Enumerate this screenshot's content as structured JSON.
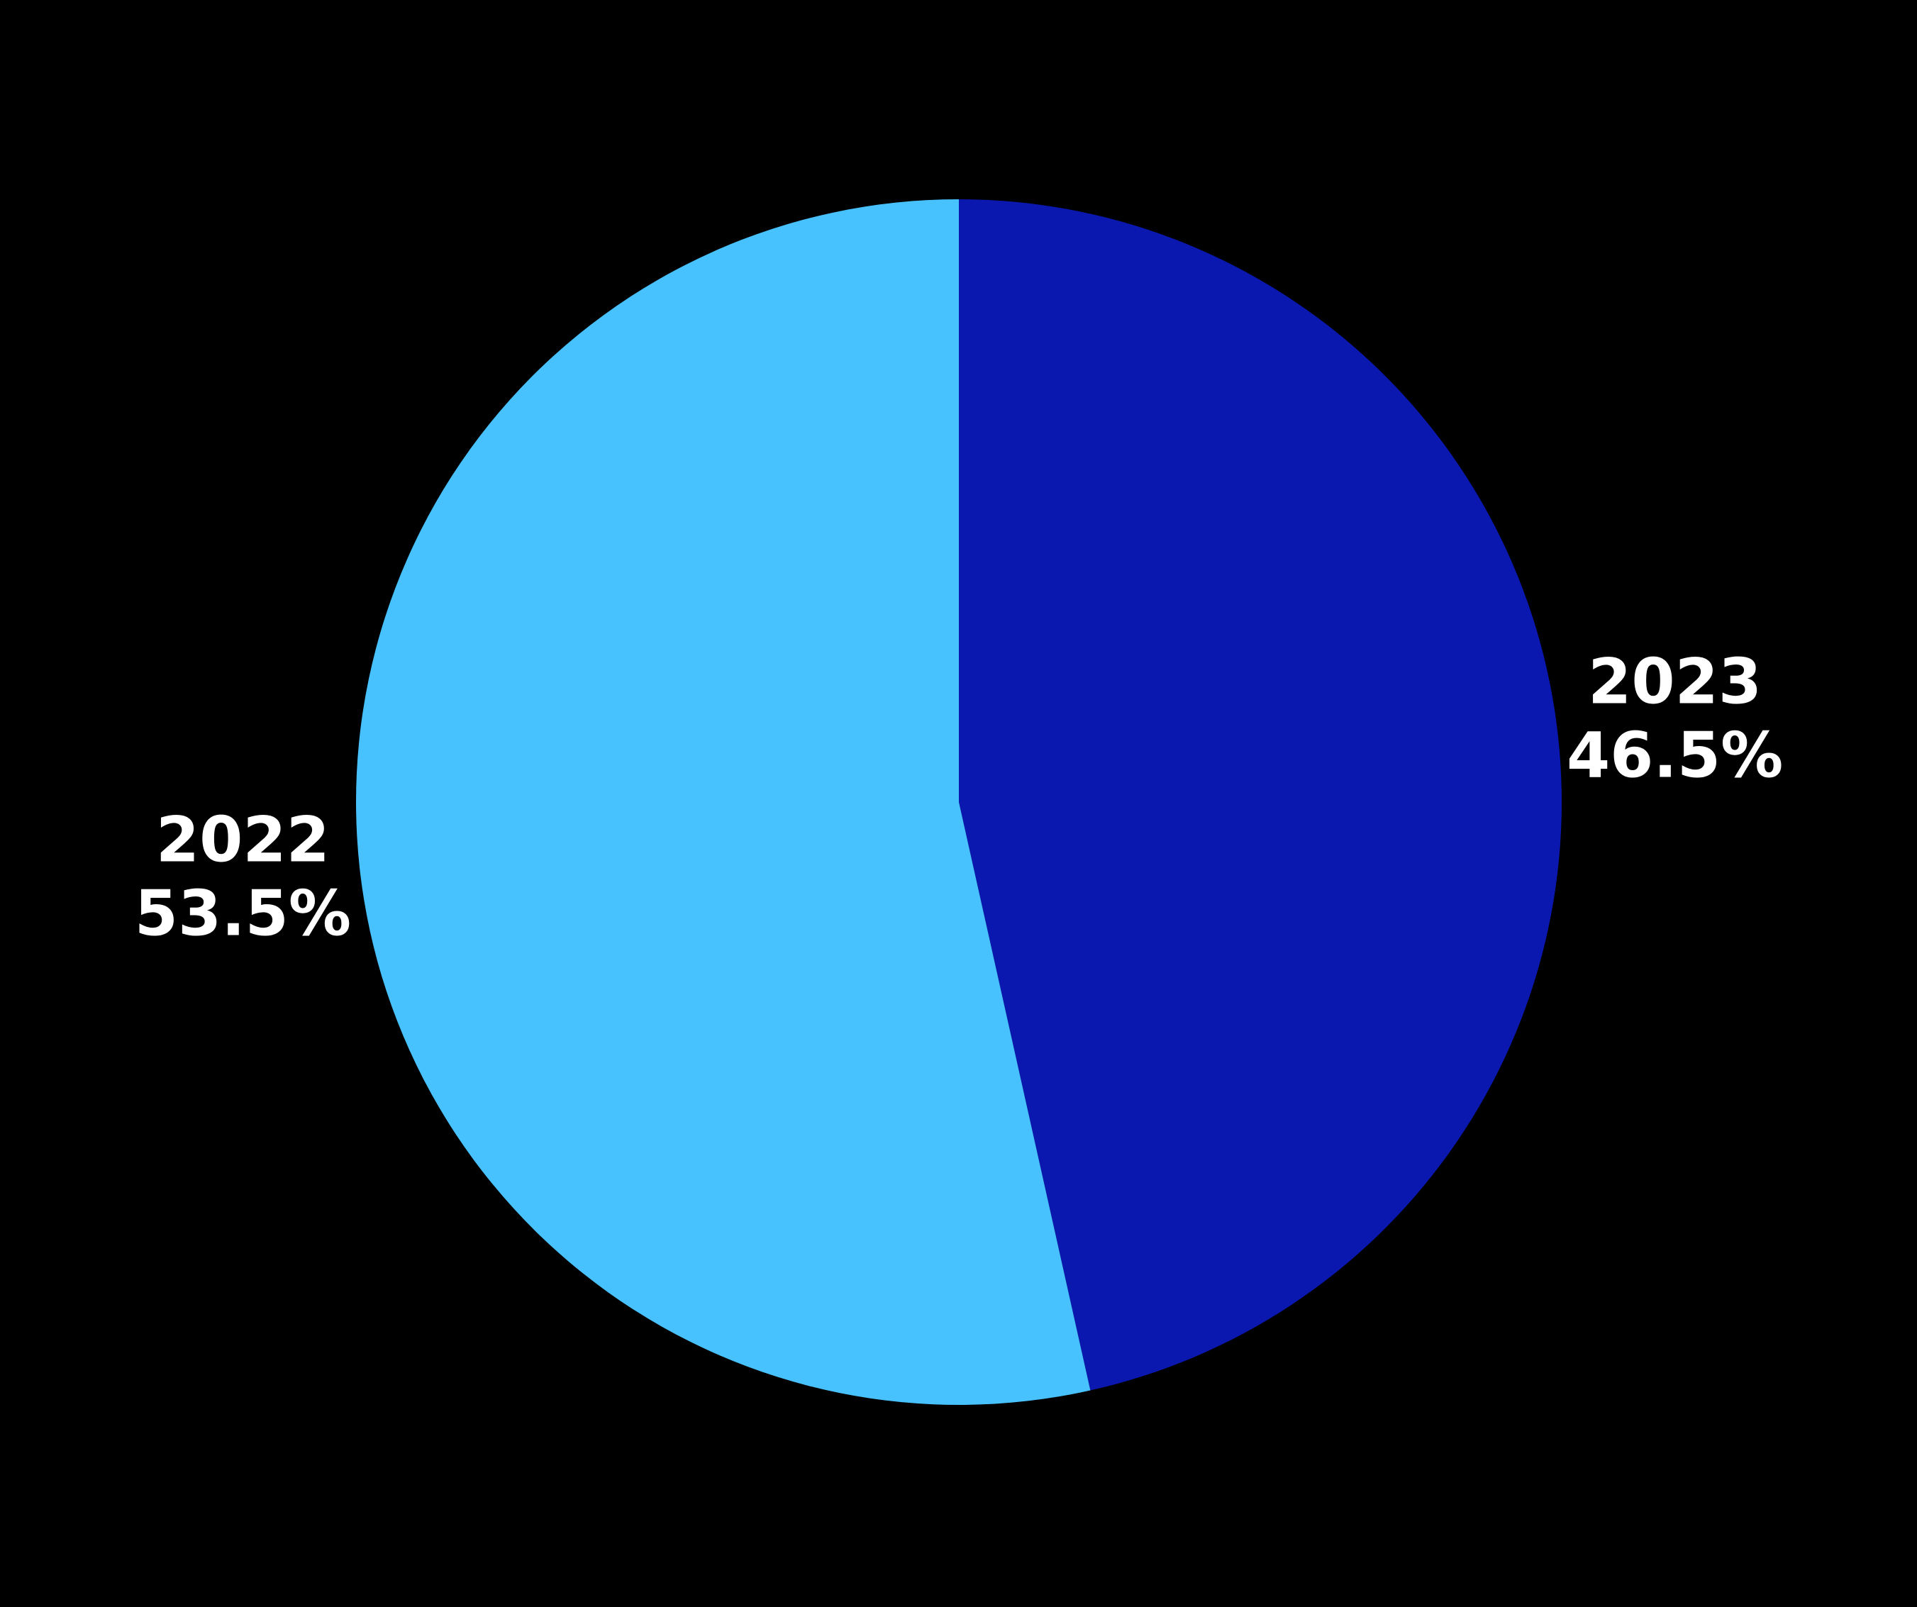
{
  "chart_data": {
    "type": "pie",
    "categories": [
      "2023",
      "2022"
    ],
    "values": [
      46.5,
      53.5
    ],
    "value_labels": [
      "46.5%",
      "53.5%"
    ],
    "colors": [
      "#0a18b0",
      "#48c2fe"
    ],
    "start": "top",
    "direction": "clockwise"
  }
}
